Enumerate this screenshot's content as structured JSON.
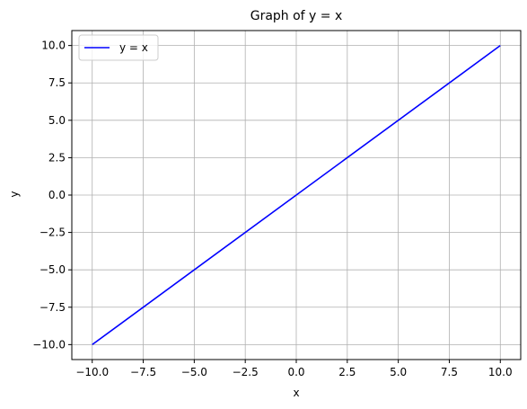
{
  "chart_data": {
    "type": "line",
    "title": "Graph of y = x",
    "xlabel": "x",
    "ylabel": "y",
    "xlim": [
      -11,
      11
    ],
    "ylim": [
      -11,
      11
    ],
    "xticks": [
      -10.0,
      -7.5,
      -5.0,
      -2.5,
      0.0,
      2.5,
      5.0,
      7.5,
      10.0
    ],
    "xtick_labels": [
      "−10.0",
      "−7.5",
      "−5.0",
      "−2.5",
      "0.0",
      "2.5",
      "5.0",
      "7.5",
      "10.0"
    ],
    "yticks": [
      -10.0,
      -7.5,
      -5.0,
      -2.5,
      0.0,
      2.5,
      5.0,
      7.5,
      10.0
    ],
    "ytick_labels": [
      "−10.0",
      "−7.5",
      "−5.0",
      "−2.5",
      "0.0",
      "2.5",
      "5.0",
      "7.5",
      "10.0"
    ],
    "grid": true,
    "legend_position": "upper-left",
    "series": [
      {
        "name": "y = x",
        "color": "#0000ff",
        "x": [
          -10,
          10
        ],
        "y": [
          -10,
          10
        ]
      }
    ]
  }
}
